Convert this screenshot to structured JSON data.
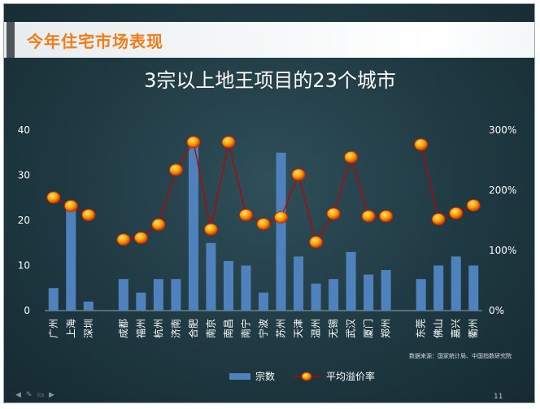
{
  "slide": {
    "header_title": "今年住宅市场表现",
    "chart_title": "3宗以上地王项目的23个城市",
    "source_note": "数据来源：国家统计局、中国指数研究院",
    "page_number": "11",
    "nav_icons": [
      "prev-arrow-icon",
      "pen-icon",
      "menu-icon",
      "next-arrow-icon"
    ]
  },
  "chart_data": {
    "type": "bar+line",
    "title": "3宗以上地王项目的23个城市",
    "categories": [
      "广州",
      "上海",
      "深圳",
      "",
      "成都",
      "福州",
      "杭州",
      "济南",
      "合肥",
      "南京",
      "南昌",
      "南宁",
      "宁波",
      "苏州",
      "天津",
      "温州",
      "无锡",
      "武汉",
      "厦门",
      "郑州",
      "",
      "东莞",
      "佛山",
      "嘉兴",
      "衢州"
    ],
    "series": [
      {
        "name": "宗数",
        "type": "bar",
        "axis": "left",
        "color": "#4f81bd",
        "values": [
          5,
          23,
          2,
          null,
          7,
          4,
          7,
          7,
          38,
          15,
          11,
          10,
          4,
          35,
          12,
          6,
          7,
          13,
          8,
          9,
          null,
          7,
          10,
          12,
          10
        ]
      },
      {
        "name": "平均溢价率",
        "type": "line",
        "axis": "right",
        "color": "#c00000",
        "marker_color": "#f5a000",
        "values": [
          188,
          174,
          159,
          null,
          118,
          121,
          143,
          234,
          280,
          135,
          280,
          159,
          144,
          155,
          226,
          114,
          161,
          255,
          157,
          157,
          null,
          276,
          152,
          162,
          175
        ]
      }
    ],
    "y_left": {
      "min": 0,
      "max": 40,
      "ticks": [
        "0",
        "10",
        "20",
        "30",
        "40"
      ]
    },
    "y_right": {
      "min": 0,
      "max": 300,
      "ticks": [
        "0%",
        "100%",
        "200%",
        "300%"
      ]
    },
    "legend": {
      "position": "bottom",
      "items": [
        "宗数",
        "平均溢价率"
      ]
    },
    "gridlines": false
  }
}
